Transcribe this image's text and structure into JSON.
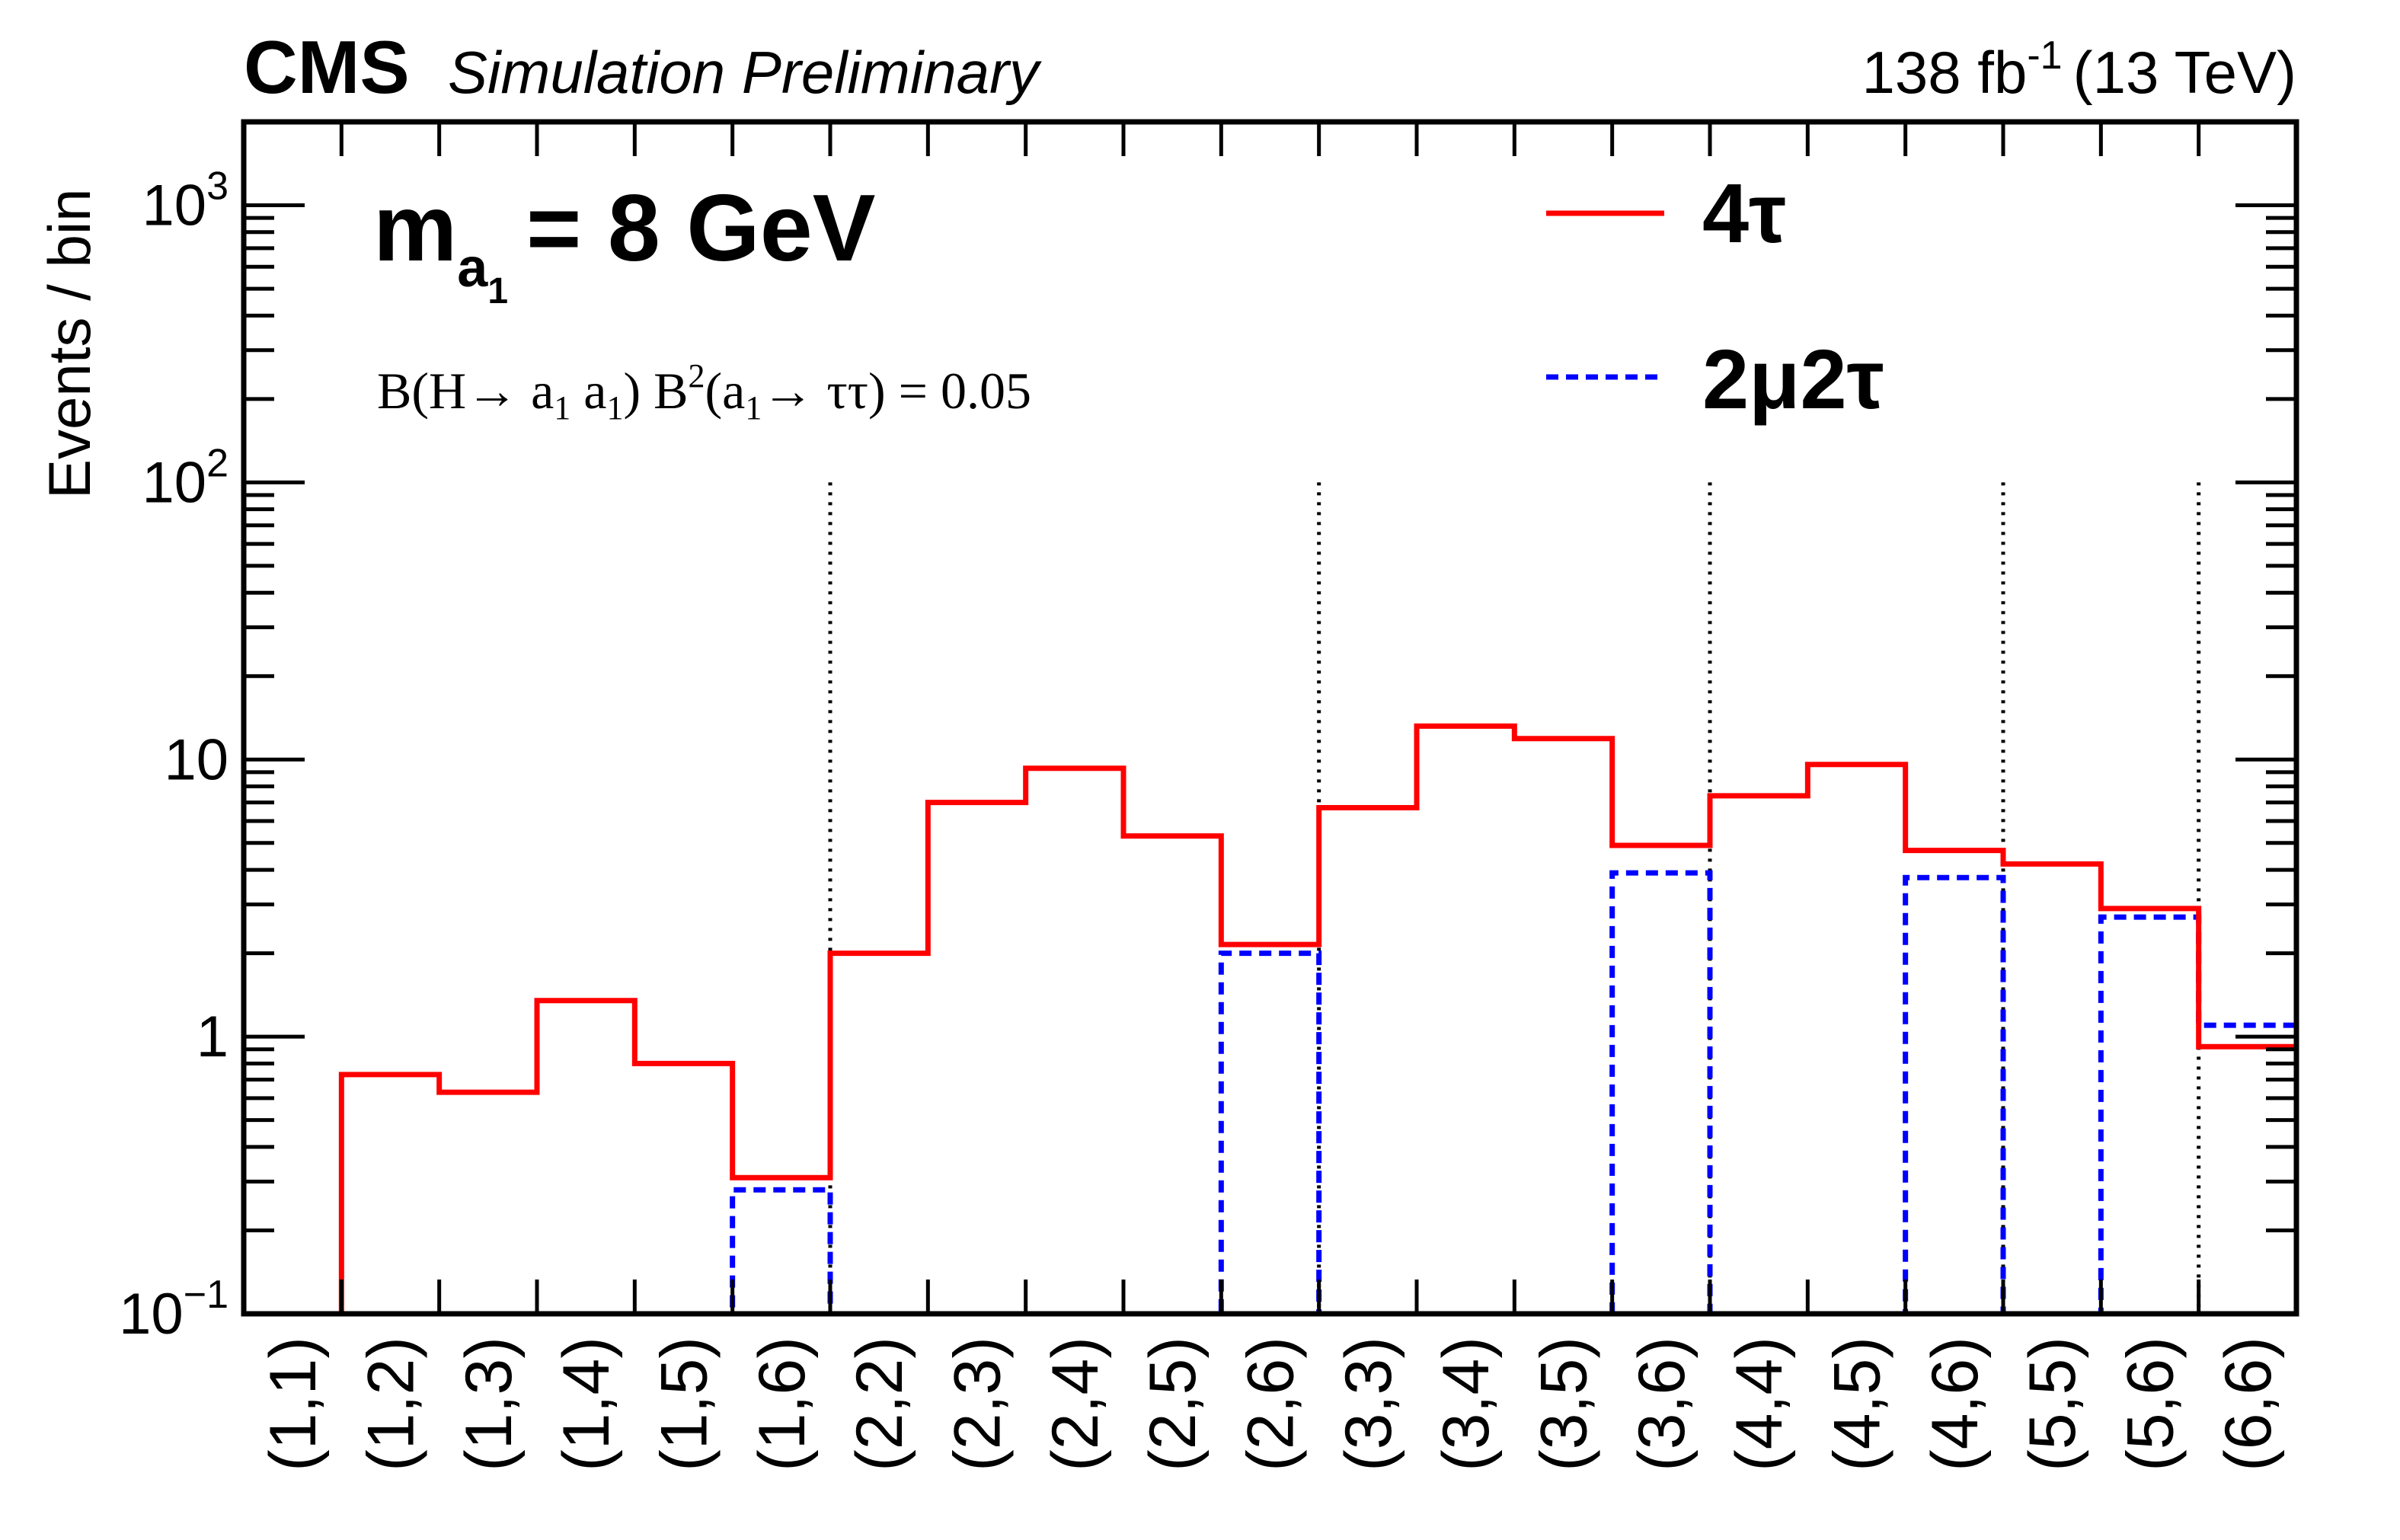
{
  "header": {
    "experiment": "CMS",
    "status": "Simulation Preliminary",
    "lumi_value": "138 fb",
    "lumi_exp": "-1",
    "energy": "(13 TeV)"
  },
  "annotations": {
    "mass_m": "m",
    "mass_sub": "a",
    "mass_subsub": "1",
    "mass_value": "= 8 GeV",
    "br_text": {
      "p1": "B(H→ a",
      "s1": "1",
      "p2": " a",
      "s2": "1",
      "p3": ") B",
      "sup": "2",
      "p4": "(a",
      "s3": "1",
      "p5": "→ ττ) = 0.05"
    }
  },
  "colors": {
    "four_tau": "#ff0000",
    "two_mu_two_tau": "#0000ff",
    "axis": "#000000"
  },
  "chart_data": {
    "type": "histogram",
    "title": "",
    "xlabel": "",
    "ylabel": "Events / bin",
    "yscale": "log",
    "ylim": [
      0.1,
      2000
    ],
    "y_ticks": [
      {
        "value": 0.1,
        "base": "10",
        "exp": "−1"
      },
      {
        "value": 1,
        "base": "1",
        "exp": ""
      },
      {
        "value": 10,
        "base": "10",
        "exp": ""
      },
      {
        "value": 100,
        "base": "10",
        "exp": "2"
      },
      {
        "value": 1000,
        "base": "10",
        "exp": "3"
      }
    ],
    "categories": [
      "(1,1)",
      "(1,2)",
      "(1,3)",
      "(1,4)",
      "(1,5)",
      "(1,6)",
      "(2,2)",
      "(2,3)",
      "(2,4)",
      "(2,5)",
      "(2,6)",
      "(3,3)",
      "(3,4)",
      "(3,5)",
      "(3,6)",
      "(4,4)",
      "(4,5)",
      "(4,6)",
      "(5,5)",
      "(5,6)",
      "(6,6)"
    ],
    "group_separators_after_bin": [
      6,
      11,
      15,
      18,
      20
    ],
    "series": [
      {
        "name": "4τ",
        "style": "solid",
        "values": [
          0.1,
          0.73,
          0.63,
          1.35,
          0.8,
          0.31,
          2.0,
          7.0,
          9.3,
          5.3,
          2.15,
          6.7,
          13.2,
          11.9,
          4.9,
          7.4,
          9.6,
          4.7,
          4.2,
          2.9,
          0.92
        ]
      },
      {
        "name": "2μ2τ",
        "style": "dashed",
        "values": [
          0.1,
          0.1,
          0.1,
          0.1,
          0.1,
          0.28,
          0.1,
          0.1,
          0.1,
          0.1,
          2.0,
          0.1,
          0.1,
          0.1,
          3.9,
          0.1,
          0.1,
          3.75,
          0.1,
          2.7,
          1.1
        ]
      }
    ],
    "legend": {
      "position": "top-right",
      "entries": [
        "4τ",
        "2μ2τ"
      ]
    }
  }
}
